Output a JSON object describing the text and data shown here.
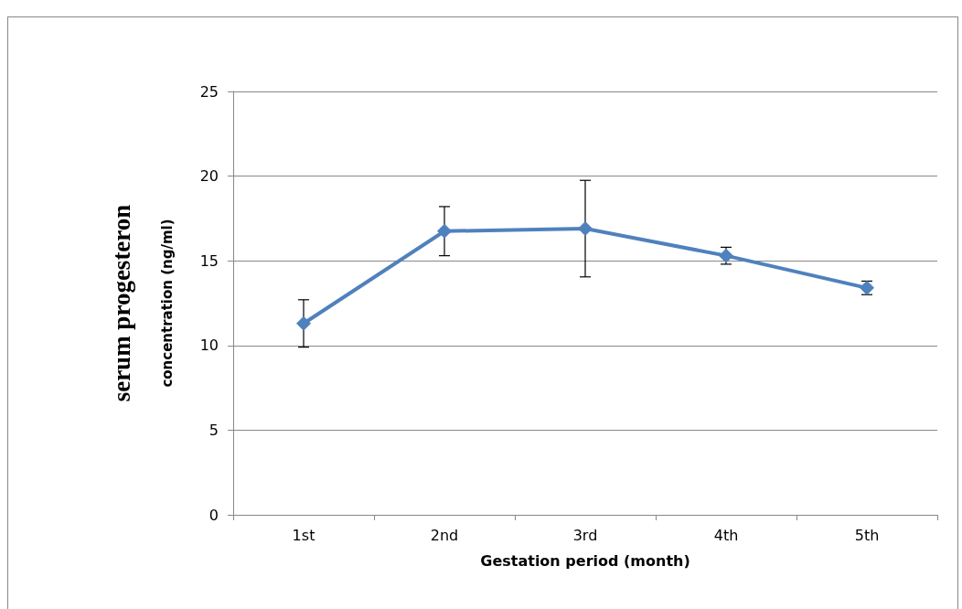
{
  "chart_data": {
    "type": "line",
    "xlabel": "Gestation period (month)",
    "ylabel": "serum progesteron\nconcentration (ng/ml)",
    "categories": [
      "1st",
      "2nd",
      "3rd",
      "4th",
      "5th"
    ],
    "series": [
      {
        "color": "#4f81bd",
        "values": [
          11.3,
          16.75,
          16.9,
          15.3,
          13.4
        ],
        "errors": [
          1.4,
          1.45,
          2.85,
          0.5,
          0.4
        ]
      }
    ],
    "ylim": [
      0,
      25
    ],
    "yticks": [
      0,
      5,
      10,
      15,
      20,
      25
    ],
    "grid": "y",
    "marker": "diamond",
    "line_style": "solid"
  }
}
